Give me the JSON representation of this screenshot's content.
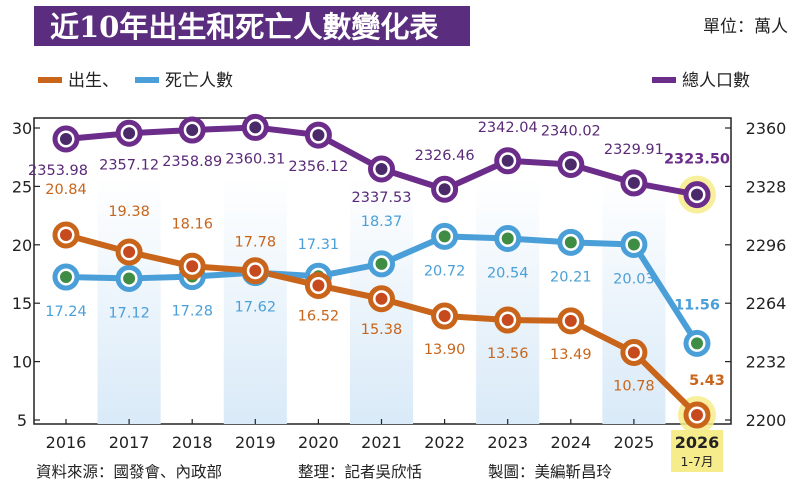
{
  "header": {
    "title": "近10年出生和死亡人數變化表",
    "unit": "單位：萬人"
  },
  "legend": {
    "births": "出生、",
    "deaths": "死亡人數",
    "population": "總人口數"
  },
  "footer": {
    "source": "資料來源：國發會、內政部",
    "editor": "整理：記者吳欣恬",
    "designer": "製圖：美編靳昌玲"
  },
  "colors": {
    "title_bg": "#5b2d7e",
    "births": "#c8651b",
    "deaths": "#4a9fd8",
    "population": "#6b2c8a",
    "highlight": "#f7ec8c",
    "band": "#d9eaf8"
  },
  "chart_data": {
    "type": "line",
    "categories": [
      "2016",
      "2017",
      "2018",
      "2019",
      "2020",
      "2021",
      "2022",
      "2023",
      "2024",
      "2025",
      "2026"
    ],
    "category_note": "1-7月",
    "left_axis": {
      "ticks": [
        "5",
        "10",
        "15",
        "20",
        "25",
        "30"
      ],
      "ylim": [
        5,
        30
      ]
    },
    "right_axis": {
      "ticks": [
        "2200",
        "2232",
        "2264",
        "2296",
        "2328",
        "2360"
      ],
      "ylim": [
        2200,
        2360
      ]
    },
    "series": [
      {
        "key": "births",
        "name": "出生",
        "axis": "left",
        "values": [
          20.84,
          19.38,
          18.16,
          17.78,
          16.52,
          15.38,
          13.9,
          13.56,
          13.49,
          10.78,
          5.43
        ],
        "labels": [
          "20.84",
          "19.38",
          "18.16",
          "17.78",
          "16.52",
          "15.38",
          "13.90",
          "13.56",
          "13.49",
          "10.78",
          "5.43"
        ]
      },
      {
        "key": "deaths",
        "name": "死亡人數",
        "axis": "left",
        "values": [
          17.24,
          17.12,
          17.28,
          17.62,
          17.31,
          18.37,
          20.72,
          20.54,
          20.21,
          20.03,
          11.56
        ],
        "labels": [
          "17.24",
          "17.12",
          "17.28",
          "17.62",
          "17.31",
          "18.37",
          "20.72",
          "20.54",
          "20.21",
          "20.03",
          "11.56"
        ]
      },
      {
        "key": "population",
        "name": "總人口數",
        "axis": "right",
        "values": [
          2353.98,
          2357.12,
          2358.89,
          2360.31,
          2356.12,
          2337.53,
          2326.46,
          2342.04,
          2340.02,
          2329.91,
          2323.5
        ],
        "labels": [
          "2353.98",
          "2357.12",
          "2358.89",
          "2360.31",
          "2356.12",
          "2337.53",
          "2326.46",
          "2342.04",
          "2340.02",
          "2329.91",
          "2323.50"
        ]
      }
    ]
  }
}
